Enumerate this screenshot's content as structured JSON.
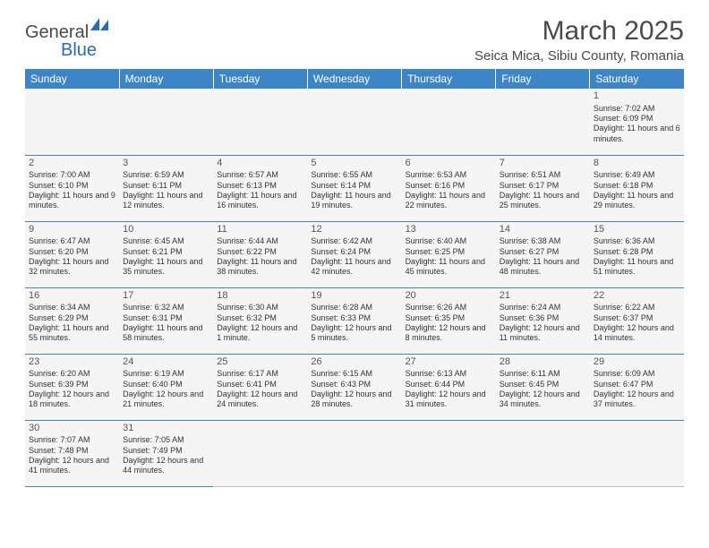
{
  "brand": {
    "part1": "General",
    "part2": "Blue"
  },
  "title": "March 2025",
  "location": "Seica Mica, Sibiu County, Romania",
  "colors": {
    "header_bg": "#3d85c6",
    "header_text": "#ffffff",
    "cell_bg": "#f5f5f5",
    "border": "#3d85c6",
    "text": "#333333",
    "brand_grey": "#4a4a4a",
    "brand_blue": "#2a6db5"
  },
  "weekdays": [
    "Sunday",
    "Monday",
    "Tuesday",
    "Wednesday",
    "Thursday",
    "Friday",
    "Saturday"
  ],
  "weeks": [
    [
      null,
      null,
      null,
      null,
      null,
      null,
      {
        "n": "1",
        "sr": "Sunrise: 7:02 AM",
        "ss": "Sunset: 6:09 PM",
        "dl": "Daylight: 11 hours and 6 minutes."
      }
    ],
    [
      {
        "n": "2",
        "sr": "Sunrise: 7:00 AM",
        "ss": "Sunset: 6:10 PM",
        "dl": "Daylight: 11 hours and 9 minutes."
      },
      {
        "n": "3",
        "sr": "Sunrise: 6:59 AM",
        "ss": "Sunset: 6:11 PM",
        "dl": "Daylight: 11 hours and 12 minutes."
      },
      {
        "n": "4",
        "sr": "Sunrise: 6:57 AM",
        "ss": "Sunset: 6:13 PM",
        "dl": "Daylight: 11 hours and 16 minutes."
      },
      {
        "n": "5",
        "sr": "Sunrise: 6:55 AM",
        "ss": "Sunset: 6:14 PM",
        "dl": "Daylight: 11 hours and 19 minutes."
      },
      {
        "n": "6",
        "sr": "Sunrise: 6:53 AM",
        "ss": "Sunset: 6:16 PM",
        "dl": "Daylight: 11 hours and 22 minutes."
      },
      {
        "n": "7",
        "sr": "Sunrise: 6:51 AM",
        "ss": "Sunset: 6:17 PM",
        "dl": "Daylight: 11 hours and 25 minutes."
      },
      {
        "n": "8",
        "sr": "Sunrise: 6:49 AM",
        "ss": "Sunset: 6:18 PM",
        "dl": "Daylight: 11 hours and 29 minutes."
      }
    ],
    [
      {
        "n": "9",
        "sr": "Sunrise: 6:47 AM",
        "ss": "Sunset: 6:20 PM",
        "dl": "Daylight: 11 hours and 32 minutes."
      },
      {
        "n": "10",
        "sr": "Sunrise: 6:45 AM",
        "ss": "Sunset: 6:21 PM",
        "dl": "Daylight: 11 hours and 35 minutes."
      },
      {
        "n": "11",
        "sr": "Sunrise: 6:44 AM",
        "ss": "Sunset: 6:22 PM",
        "dl": "Daylight: 11 hours and 38 minutes."
      },
      {
        "n": "12",
        "sr": "Sunrise: 6:42 AM",
        "ss": "Sunset: 6:24 PM",
        "dl": "Daylight: 11 hours and 42 minutes."
      },
      {
        "n": "13",
        "sr": "Sunrise: 6:40 AM",
        "ss": "Sunset: 6:25 PM",
        "dl": "Daylight: 11 hours and 45 minutes."
      },
      {
        "n": "14",
        "sr": "Sunrise: 6:38 AM",
        "ss": "Sunset: 6:27 PM",
        "dl": "Daylight: 11 hours and 48 minutes."
      },
      {
        "n": "15",
        "sr": "Sunrise: 6:36 AM",
        "ss": "Sunset: 6:28 PM",
        "dl": "Daylight: 11 hours and 51 minutes."
      }
    ],
    [
      {
        "n": "16",
        "sr": "Sunrise: 6:34 AM",
        "ss": "Sunset: 6:29 PM",
        "dl": "Daylight: 11 hours and 55 minutes."
      },
      {
        "n": "17",
        "sr": "Sunrise: 6:32 AM",
        "ss": "Sunset: 6:31 PM",
        "dl": "Daylight: 11 hours and 58 minutes."
      },
      {
        "n": "18",
        "sr": "Sunrise: 6:30 AM",
        "ss": "Sunset: 6:32 PM",
        "dl": "Daylight: 12 hours and 1 minute."
      },
      {
        "n": "19",
        "sr": "Sunrise: 6:28 AM",
        "ss": "Sunset: 6:33 PM",
        "dl": "Daylight: 12 hours and 5 minutes."
      },
      {
        "n": "20",
        "sr": "Sunrise: 6:26 AM",
        "ss": "Sunset: 6:35 PM",
        "dl": "Daylight: 12 hours and 8 minutes."
      },
      {
        "n": "21",
        "sr": "Sunrise: 6:24 AM",
        "ss": "Sunset: 6:36 PM",
        "dl": "Daylight: 12 hours and 11 minutes."
      },
      {
        "n": "22",
        "sr": "Sunrise: 6:22 AM",
        "ss": "Sunset: 6:37 PM",
        "dl": "Daylight: 12 hours and 14 minutes."
      }
    ],
    [
      {
        "n": "23",
        "sr": "Sunrise: 6:20 AM",
        "ss": "Sunset: 6:39 PM",
        "dl": "Daylight: 12 hours and 18 minutes."
      },
      {
        "n": "24",
        "sr": "Sunrise: 6:19 AM",
        "ss": "Sunset: 6:40 PM",
        "dl": "Daylight: 12 hours and 21 minutes."
      },
      {
        "n": "25",
        "sr": "Sunrise: 6:17 AM",
        "ss": "Sunset: 6:41 PM",
        "dl": "Daylight: 12 hours and 24 minutes."
      },
      {
        "n": "26",
        "sr": "Sunrise: 6:15 AM",
        "ss": "Sunset: 6:43 PM",
        "dl": "Daylight: 12 hours and 28 minutes."
      },
      {
        "n": "27",
        "sr": "Sunrise: 6:13 AM",
        "ss": "Sunset: 6:44 PM",
        "dl": "Daylight: 12 hours and 31 minutes."
      },
      {
        "n": "28",
        "sr": "Sunrise: 6:11 AM",
        "ss": "Sunset: 6:45 PM",
        "dl": "Daylight: 12 hours and 34 minutes."
      },
      {
        "n": "29",
        "sr": "Sunrise: 6:09 AM",
        "ss": "Sunset: 6:47 PM",
        "dl": "Daylight: 12 hours and 37 minutes."
      }
    ],
    [
      {
        "n": "30",
        "sr": "Sunrise: 7:07 AM",
        "ss": "Sunset: 7:48 PM",
        "dl": "Daylight: 12 hours and 41 minutes."
      },
      {
        "n": "31",
        "sr": "Sunrise: 7:05 AM",
        "ss": "Sunset: 7:49 PM",
        "dl": "Daylight: 12 hours and 44 minutes."
      },
      null,
      null,
      null,
      null,
      null
    ]
  ]
}
